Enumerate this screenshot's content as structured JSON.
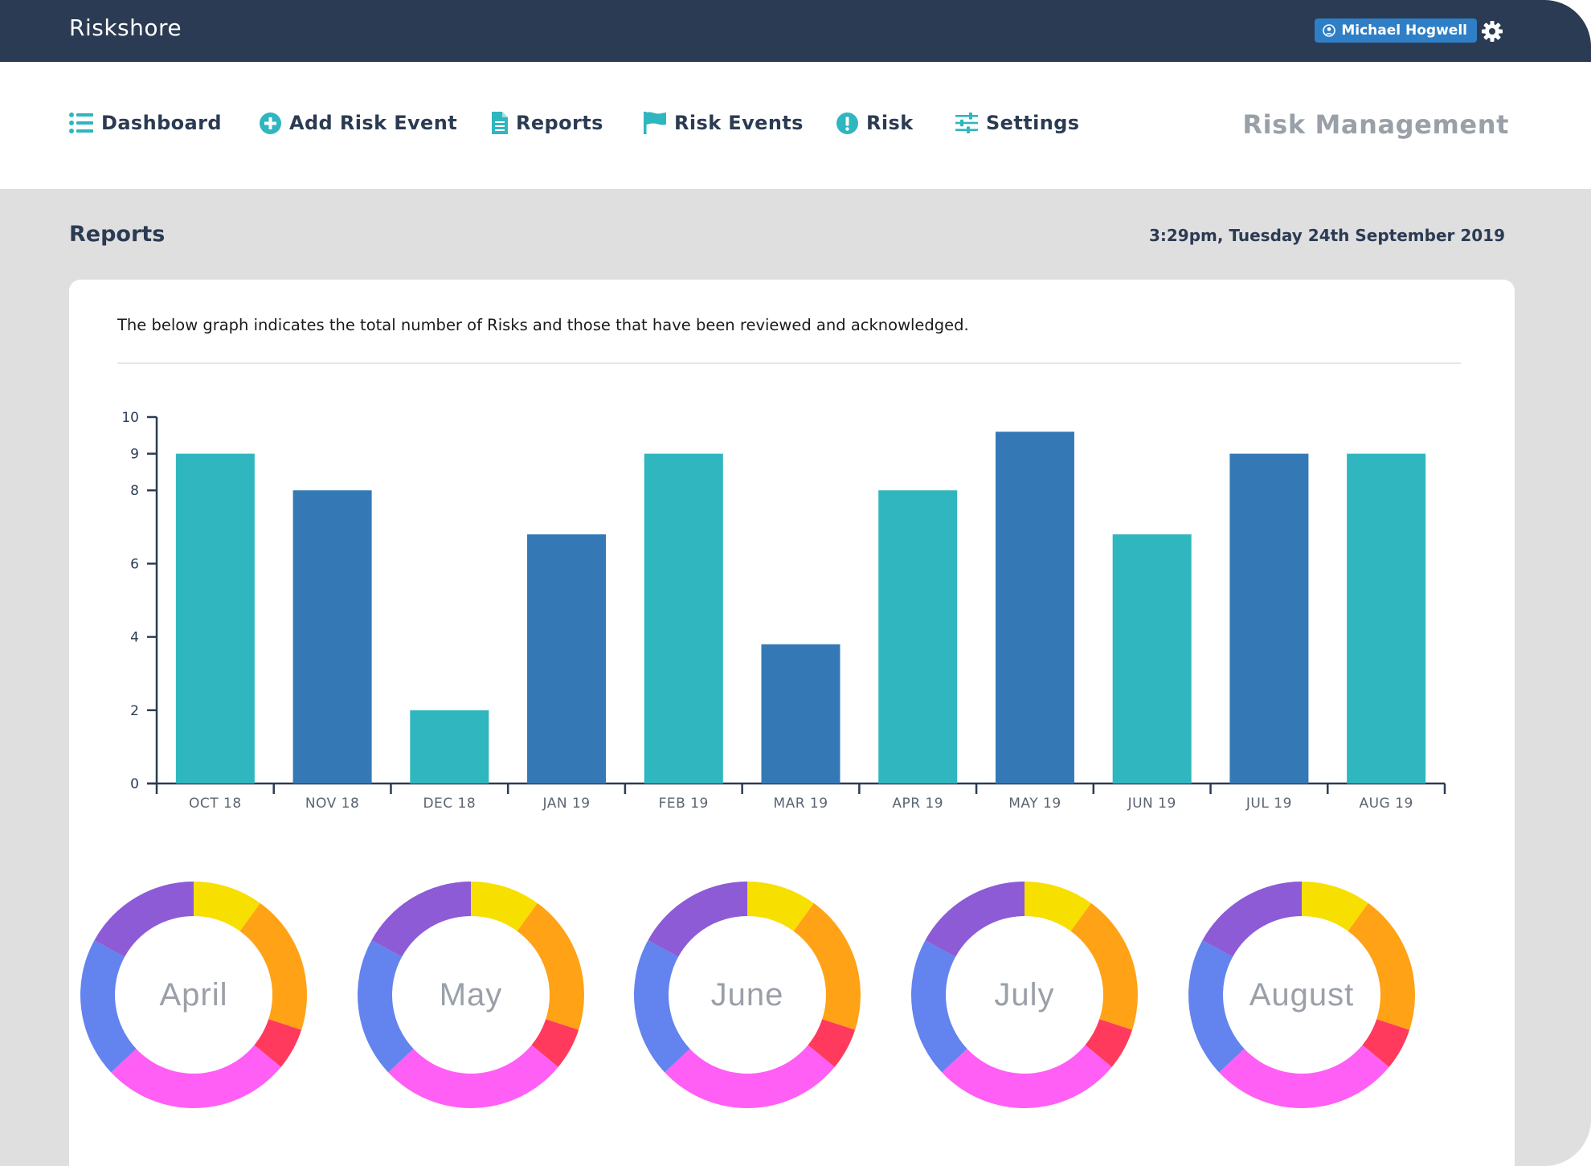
{
  "app": {
    "brand": "Riskshore",
    "user_name": "Michael Hogwell",
    "module_title": "Risk Management"
  },
  "nav": {
    "items": [
      {
        "label": "Dashboard",
        "icon": "list-icon"
      },
      {
        "label": "Add Risk Event",
        "icon": "plus-circle-icon"
      },
      {
        "label": "Reports",
        "icon": "document-icon"
      },
      {
        "label": "Risk Events",
        "icon": "flag-icon"
      },
      {
        "label": "Risk",
        "icon": "exclamation-circle-icon"
      },
      {
        "label": "Settings",
        "icon": "sliders-icon"
      }
    ]
  },
  "page": {
    "title": "Reports",
    "timestamp": "3:29pm, Tuesday 24th September 2019",
    "description": "The below graph indicates the total number of Risks and those that have been reviewed and acknowledged."
  },
  "colors": {
    "header": "#2b3b53",
    "teal": "#2fb6bf",
    "blue": "#3479b6",
    "badge": "#2f7fc6"
  },
  "chart_data": {
    "type": "bar",
    "categories": [
      "OCT 18",
      "NOV 18",
      "DEC 18",
      "JAN 19",
      "FEB 19",
      "MAR 19",
      "APR 19",
      "MAY 19",
      "JUN 19",
      "JUL 19",
      "AUG 19"
    ],
    "values": [
      9,
      8,
      2,
      6.8,
      9,
      3.8,
      8,
      9.6,
      6.8,
      9,
      9
    ],
    "bar_colors": [
      "#2fb6bf",
      "#3479b6",
      "#2fb6bf",
      "#3479b6",
      "#2fb6bf",
      "#3479b6",
      "#2fb6bf",
      "#3479b6",
      "#2fb6bf",
      "#3479b6",
      "#2fb6bf"
    ],
    "yticks": [
      0,
      2,
      4,
      6,
      8,
      9,
      10
    ],
    "ylim": [
      0,
      10
    ],
    "title": "",
    "xlabel": "",
    "ylabel": ""
  },
  "donuts": {
    "segment_colors": [
      "#f7df00",
      "#ffa216",
      "#ff3a5c",
      "#ff5ff5",
      "#6383ee",
      "#8d5bd6"
    ],
    "segment_fractions": [
      0.1,
      0.2,
      0.06,
      0.27,
      0.2,
      0.17
    ],
    "items": [
      {
        "label": "April"
      },
      {
        "label": "May"
      },
      {
        "label": "June"
      },
      {
        "label": "July"
      },
      {
        "label": "August"
      }
    ]
  }
}
